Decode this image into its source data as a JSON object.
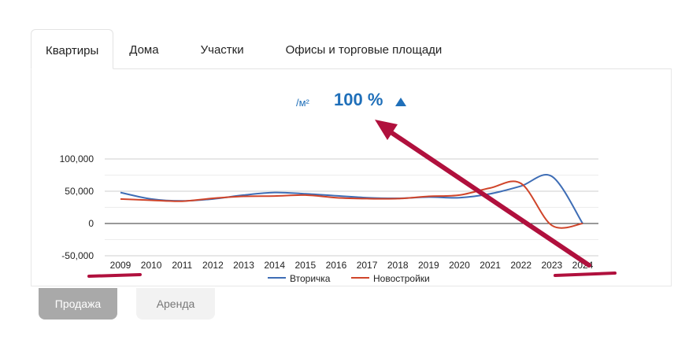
{
  "tabs": [
    {
      "label": "Квартиры",
      "active": true
    },
    {
      "label": "Дома",
      "active": false
    },
    {
      "label": "Участки",
      "active": false
    },
    {
      "label": "Офисы и торговые площади",
      "active": false
    }
  ],
  "price": {
    "unit": "/м²",
    "value": "100 %",
    "trend": "up",
    "color": "#1f6fb9"
  },
  "modes": [
    {
      "label": "Продажа",
      "active": true
    },
    {
      "label": "Аренда",
      "active": false
    }
  ],
  "chart_data": {
    "type": "line",
    "x": [
      "2009",
      "2010",
      "2011",
      "2012",
      "2013",
      "2014",
      "2015",
      "2016",
      "2017",
      "2018",
      "2019",
      "2020",
      "2021",
      "2022",
      "2023",
      "2024"
    ],
    "yticks": [
      "100,000",
      "50,000",
      "0",
      "-50,000"
    ],
    "ylim": [
      -50000,
      100000
    ],
    "grid": true,
    "legend": "bottom",
    "series": [
      {
        "name": "Вторичка",
        "color": "#3e6db5",
        "values": [
          48000,
          38000,
          35000,
          38000,
          44000,
          48000,
          46000,
          43000,
          40000,
          39000,
          41000,
          40000,
          46000,
          58000,
          73000,
          0
        ]
      },
      {
        "name": "Новостройки",
        "color": "#d0452a",
        "values": [
          38000,
          36000,
          34500,
          39000,
          42000,
          42500,
          44000,
          40000,
          38500,
          38500,
          42000,
          44000,
          55000,
          62000,
          -3000,
          0
        ]
      }
    ]
  }
}
